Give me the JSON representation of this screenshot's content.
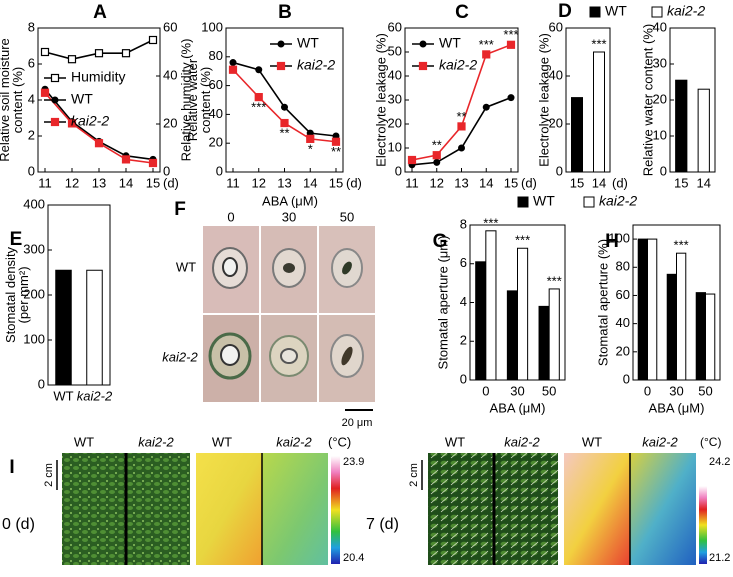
{
  "chart_data": [
    {
      "type": "line",
      "title": "A",
      "x": [
        11,
        12,
        13,
        14,
        15
      ],
      "xlim": [
        11,
        15
      ],
      "xticks": [
        11,
        12,
        13,
        14,
        15
      ],
      "x_unit": "(d)",
      "y_label": [
        "Relative soil moisture",
        "content (%)"
      ],
      "y2_label": "Relative humidity (%)",
      "ylim": [
        0,
        8
      ],
      "yticks": [
        0,
        2,
        4,
        6,
        8
      ],
      "y2lim": [
        0,
        60
      ],
      "y2ticks": [
        0,
        20,
        40,
        60
      ],
      "series": [
        {
          "name": "Humidity",
          "color": "#000000",
          "marker": "open-square",
          "axis": "y2",
          "values": [
            50,
            47,
            49.5,
            49.5,
            55
          ]
        },
        {
          "name": "WT",
          "color": "#000000",
          "marker": "circle",
          "values": [
            4.6,
            2.8,
            1.7,
            0.9,
            0.7
          ]
        },
        {
          "name": "kai2-2",
          "italic": true,
          "color": "#e8262a",
          "marker": "square",
          "values": [
            4.4,
            2.7,
            1.6,
            0.7,
            0.5
          ]
        }
      ]
    },
    {
      "type": "line",
      "title": "B",
      "x": [
        11,
        12,
        13,
        14,
        15
      ],
      "xlim": [
        11,
        15
      ],
      "xticks": [
        11,
        12,
        13,
        14,
        15
      ],
      "x_unit": "(d)",
      "y_label": [
        "Relative water",
        "content (%)"
      ],
      "ylim": [
        0,
        100
      ],
      "yticks": [
        0,
        20,
        40,
        60,
        80,
        100
      ],
      "series": [
        {
          "name": "WT",
          "color": "#000000",
          "marker": "circle",
          "values": [
            76,
            71,
            45,
            27,
            25
          ]
        },
        {
          "name": "kai2-2",
          "italic": true,
          "color": "#e8262a",
          "marker": "square",
          "values": [
            71,
            52,
            34,
            23,
            21
          ]
        }
      ],
      "annotation_side": "below",
      "annotations": [
        {
          "text": "***",
          "index": 1
        },
        {
          "text": "**",
          "index": 2
        },
        {
          "text": "*",
          "index": 3
        },
        {
          "text": "**",
          "index": 4
        }
      ]
    },
    {
      "type": "line",
      "title": "C",
      "x": [
        11,
        12,
        13,
        14,
        15
      ],
      "xlim": [
        11,
        15
      ],
      "xticks": [
        11,
        12,
        13,
        14,
        15
      ],
      "x_unit": "(d)",
      "y_label": "Electrolyte leakage (%)",
      "ylim": [
        0,
        60
      ],
      "yticks": [
        0,
        10,
        20,
        30,
        40,
        50,
        60
      ],
      "series": [
        {
          "name": "WT",
          "color": "#000000",
          "marker": "circle",
          "values": [
            3,
            4,
            10,
            27,
            31
          ]
        },
        {
          "name": "kai2-2",
          "italic": true,
          "color": "#e8262a",
          "marker": "square",
          "values": [
            5,
            7,
            19,
            49,
            53
          ]
        }
      ],
      "annotation_side": "above",
      "annotations": [
        {
          "text": "**",
          "index": 1
        },
        {
          "text": "**",
          "index": 2
        },
        {
          "text": "***",
          "index": 3
        },
        {
          "text": "***",
          "index": 4
        }
      ]
    },
    {
      "type": "bar",
      "title": "D",
      "categories": [
        "15",
        "14"
      ],
      "x_unit": "(d)",
      "values": [
        31,
        50
      ],
      "colors": [
        "#000000",
        "#ffffff"
      ],
      "ylim": [
        0,
        60
      ],
      "yticks": [
        0,
        20,
        40,
        60
      ],
      "y_label": "Electrolyte leakage (%)",
      "annotations": [
        {
          "text": "***",
          "index": 1
        }
      ],
      "legend": [
        {
          "name": "WT",
          "color": "#000000"
        },
        {
          "name": "kai2-2",
          "color": "#ffffff",
          "italic": true
        }
      ]
    },
    {
      "type": "bar",
      "categories": [
        "15",
        "14"
      ],
      "values": [
        25.5,
        23
      ],
      "colors": [
        "#000000",
        "#ffffff"
      ],
      "ylim": [
        0,
        40
      ],
      "yticks": [
        0,
        10,
        20,
        30,
        40
      ],
      "y_label": "Relative water content (%)"
    },
    {
      "type": "bar",
      "title": "E",
      "categories": [
        "WT",
        "kai2-2"
      ],
      "category_italic": [
        false,
        true
      ],
      "values": [
        255,
        255
      ],
      "colors": [
        "#000000",
        "#ffffff"
      ],
      "ylim": [
        0,
        400
      ],
      "yticks": [
        0,
        100,
        200,
        300,
        400
      ],
      "y_label": [
        "Stomatal density",
        "(per mm²)"
      ]
    },
    {
      "type": "bar",
      "title": "G",
      "categories": [
        "0",
        "30",
        "50"
      ],
      "x_label": "ABA (μM)",
      "series": [
        {
          "name": "WT",
          "color": "#000000",
          "values": [
            6.1,
            4.6,
            3.8
          ]
        },
        {
          "name": "kai2-2",
          "italic": true,
          "color": "#ffffff",
          "values": [
            7.7,
            6.8,
            4.7
          ]
        }
      ],
      "ylim": [
        0,
        8
      ],
      "yticks": [
        0,
        2,
        4,
        6,
        8
      ],
      "y_label": "Stomatal aperture (μm)",
      "annotations": [
        {
          "text": "***",
          "index": 0
        },
        {
          "text": "***",
          "index": 1
        },
        {
          "text": "***",
          "index": 2
        }
      ]
    },
    {
      "type": "bar",
      "title": "H",
      "categories": [
        "0",
        "30",
        "50"
      ],
      "x_label": "ABA (μM)",
      "series": [
        {
          "color": "#000000",
          "values": [
            100,
            75,
            62
          ]
        },
        {
          "color": "#ffffff",
          "values": [
            100,
            90,
            61
          ]
        }
      ],
      "ylim": [
        0,
        110
      ],
      "yticks": [
        0,
        20,
        40,
        60,
        80,
        100
      ],
      "y_label": "Stomatal aperture (%)",
      "annotations": [
        {
          "text": "***",
          "index": 1
        }
      ]
    }
  ],
  "images": {
    "F": {
      "title": "F",
      "header": "ABA (μM)",
      "columns": [
        "0",
        "30",
        "50"
      ],
      "rows": [
        "WT",
        "kai2-2"
      ],
      "scale_bar": "20 μm"
    },
    "I": {
      "title": "I",
      "panels": [
        {
          "day": "0 (d)",
          "labels": [
            "WT",
            "kai2-2",
            "WT",
            "kai2-2"
          ],
          "unit": "(°C)",
          "scale": "2 cm",
          "max": 23.9,
          "min": 20.4
        },
        {
          "day": "7 (d)",
          "labels": [
            "WT",
            "kai2-2",
            "WT",
            "kai2-2"
          ],
          "unit": "(°C)",
          "scale": "2 cm",
          "max": 24.2,
          "min": 21.2
        }
      ]
    }
  }
}
